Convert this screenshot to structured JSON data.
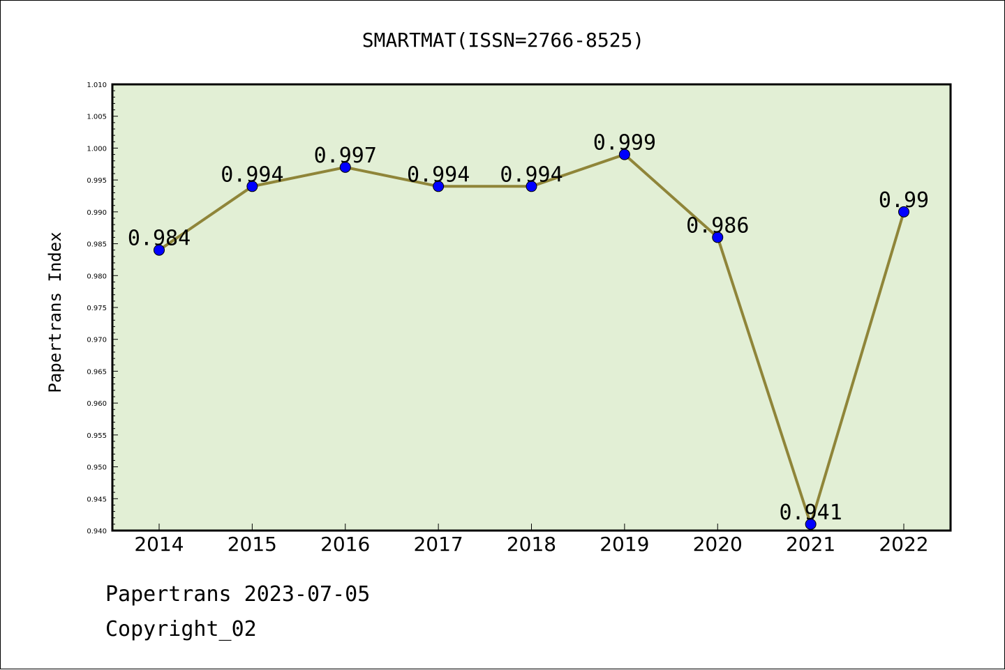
{
  "chart_data": {
    "type": "line",
    "title": "SMARTMAT(ISSN=2766-8525)",
    "xlabel": "",
    "ylabel": "Papertrans Index",
    "categories": [
      "2014",
      "2015",
      "2016",
      "2017",
      "2018",
      "2019",
      "2020",
      "2021",
      "2022"
    ],
    "series": [
      {
        "values": [
          0.984,
          0.994,
          0.997,
          0.994,
          0.994,
          0.999,
          0.986,
          0.941,
          0.99
        ],
        "labels": [
          "0.984",
          "0.994",
          "0.997",
          "0.994",
          "0.994",
          "0.999",
          "0.986",
          "0.941",
          "0.99"
        ]
      }
    ],
    "ylim": [
      0.94,
      1.01
    ],
    "yticks": [
      "0.940",
      "0.945",
      "0.950",
      "0.955",
      "0.960",
      "0.965",
      "0.970",
      "0.975",
      "0.980",
      "0.985",
      "0.990",
      "0.995",
      "1.000",
      "1.005",
      "1.010"
    ],
    "grid": false,
    "colors": {
      "plot_background": "#e2efd5",
      "line": "#8f8539",
      "marker": "#0000ff",
      "frame": "#000000"
    }
  },
  "footer": {
    "date_line": "Papertrans 2023-07-05",
    "copyright": "Copyright_02"
  }
}
